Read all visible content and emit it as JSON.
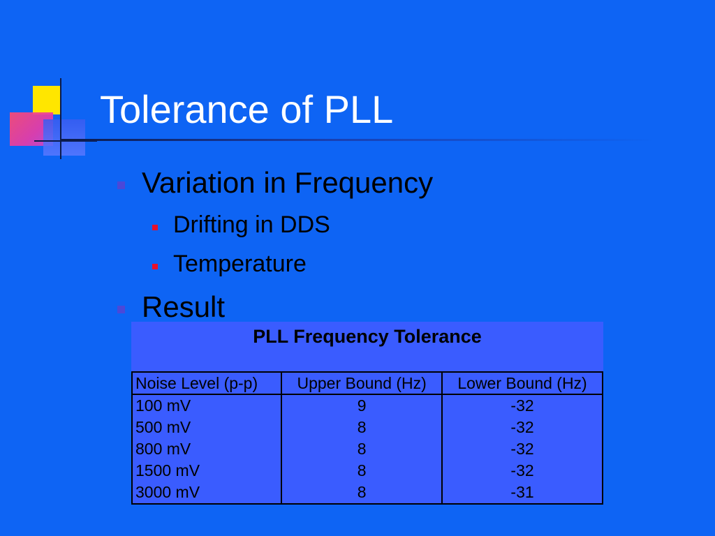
{
  "slide": {
    "title": "Tolerance of PLL",
    "bullets": [
      {
        "text": "Variation in Frequency",
        "sub": [
          "Drifting in DDS",
          "Temperature"
        ]
      },
      {
        "text": "Result",
        "sub": []
      }
    ]
  },
  "table": {
    "title": "PLL Frequency Tolerance",
    "headers": [
      "Noise Level (p-p)",
      "Upper Bound (Hz)",
      "Lower Bound (Hz)"
    ],
    "rows": [
      [
        "100 mV",
        "9",
        "-32"
      ],
      [
        "500 mV",
        "8",
        "-32"
      ],
      [
        "800 mV",
        "8",
        "-32"
      ],
      [
        "1500 mV",
        "8",
        "-32"
      ],
      [
        "3000 mV",
        "8",
        "-31"
      ]
    ]
  },
  "colors": {
    "background": "#0e64f4",
    "title_text": "#ffffff",
    "level1_marker": "#4b48d8",
    "level2_marker": "#e8102a",
    "table_fill": "#3a5cff"
  }
}
